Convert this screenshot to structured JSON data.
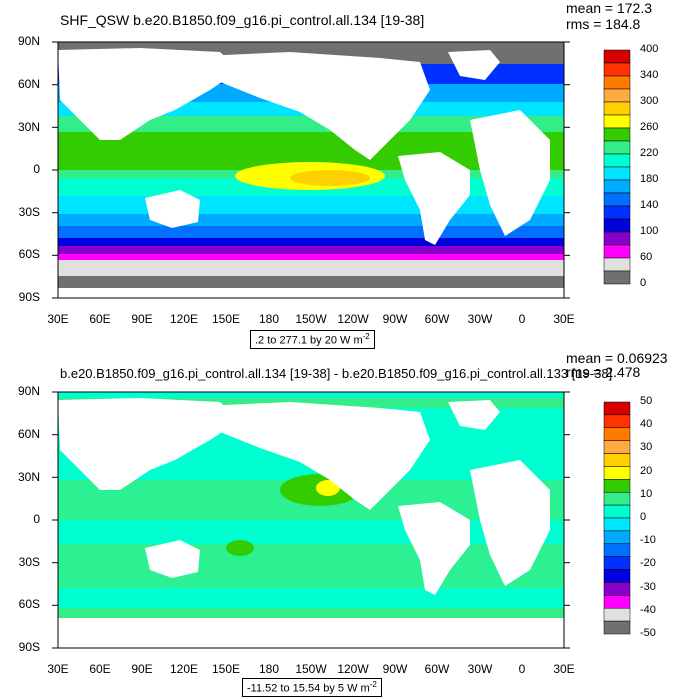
{
  "chart_data": [
    {
      "type": "heatmap",
      "title": "SHF_QSW b.e20.B1850.f09_g16.pi_control.all.134 [19-38]",
      "stats": {
        "mean": "mean = 172.3",
        "rms": "rms = 184.8"
      },
      "range_label": ".2 to 277.1 by 20  W m",
      "range_exp": "-2",
      "yticks": [
        "90N",
        "60N",
        "30N",
        "0",
        "30S",
        "60S",
        "90S"
      ],
      "xticks": [
        "30E",
        "60E",
        "90E",
        "120E",
        "150E",
        "180",
        "150W",
        "120W",
        "90W",
        "60W",
        "30W",
        "0",
        "30E"
      ],
      "colorbar": {
        "labels": [
          "400",
          "340",
          "300",
          "260",
          "220",
          "180",
          "140",
          "100",
          "60",
          "0"
        ],
        "colors": [
          "#d40000",
          "#ff3300",
          "#ff7a00",
          "#ffaa40",
          "#ffd000",
          "#ffff00",
          "#33cc00",
          "#33ee88",
          "#00ffd0",
          "#00e5ff",
          "#00aaff",
          "#0070ff",
          "#0030ff",
          "#0000dd",
          "#8800cc",
          "#ff00ff",
          "#e0e0e0",
          "#707070"
        ]
      }
    },
    {
      "type": "heatmap",
      "title": "b.e20.B1850.f09_g16.pi_control.all.134 [19-38] - b.e20.B1850.f09_g16.pi_control.all.133 [19-38]",
      "stats": {
        "mean": "mean = 0.06923",
        "rms": "rms = 2.478"
      },
      "range_label": "-11.52 to 15.54 by 5  W m",
      "range_exp": "-2",
      "yticks": [
        "90N",
        "60N",
        "30N",
        "0",
        "30S",
        "60S",
        "90S"
      ],
      "xticks": [
        "30E",
        "60E",
        "90E",
        "120E",
        "150E",
        "180",
        "150W",
        "120W",
        "90W",
        "60W",
        "30W",
        "0",
        "30E"
      ],
      "colorbar": {
        "labels": [
          "50",
          "40",
          "30",
          "20",
          "10",
          "0",
          "-10",
          "-20",
          "-30",
          "-40",
          "-50"
        ],
        "colors": [
          "#d40000",
          "#ff3300",
          "#ff7a00",
          "#ffaa40",
          "#ffd000",
          "#ffff00",
          "#33cc00",
          "#33ee88",
          "#00ffd0",
          "#00e5ff",
          "#00aaff",
          "#0070ff",
          "#0030ff",
          "#0000dd",
          "#8800cc",
          "#ff00ff",
          "#e0e0e0",
          "#707070"
        ]
      }
    }
  ]
}
